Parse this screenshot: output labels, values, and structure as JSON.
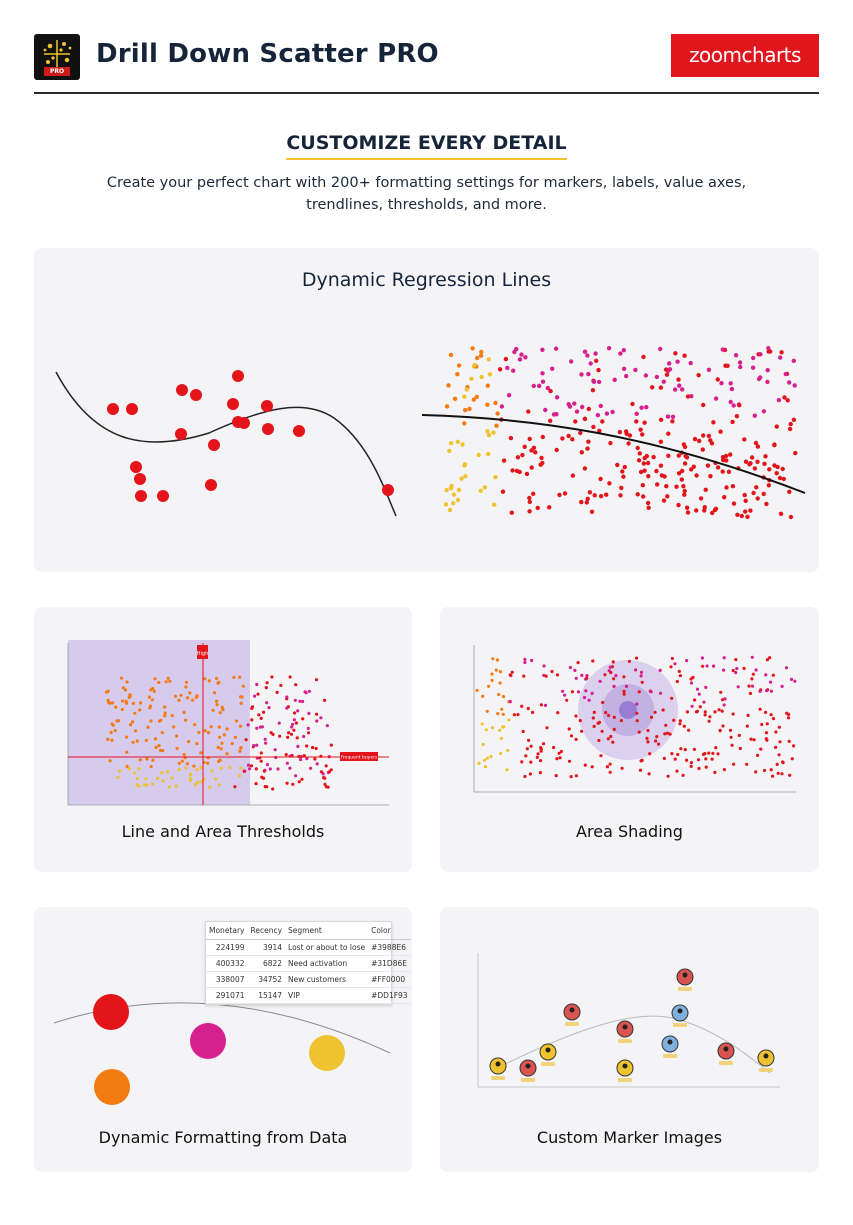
{
  "header": {
    "title": "Drill Down Scatter PRO",
    "icon_badge": "PRO",
    "brand": "zoomcharts",
    "accent": "#e1161c"
  },
  "hero": {
    "heading": "CUSTOMIZE EVERY DETAIL",
    "subtitle": "Create your perfect chart with 200+ formatting settings for markers, labels, value axes, trendlines, thresholds, and more."
  },
  "panels": {
    "regression": {
      "title": "Dynamic Regression Lines"
    },
    "thresholds": {
      "title": "Line and Area Thresholds",
      "line_label": "High",
      "area_label": "Frequent buyers"
    },
    "shading": {
      "title": "Area Shading"
    },
    "formatting": {
      "title": "Dynamic Formatting from Data"
    },
    "markers": {
      "title": "Custom Marker Images"
    }
  },
  "format_table": {
    "headers": [
      "Monetary",
      "Recency",
      "Segment",
      "Color"
    ],
    "rows": [
      [
        "224199",
        "3914",
        "Lost or about to lose",
        "#3988E6"
      ],
      [
        "400332",
        "6822",
        "Need activation",
        "#31D86E"
      ],
      [
        "338007",
        "34752",
        "New customers",
        "#FF0000"
      ],
      [
        "291071",
        "15147",
        "VIP",
        "#DD1F93"
      ]
    ]
  },
  "colors": {
    "red": "#e4141b",
    "orange": "#f47a12",
    "yellow": "#efc22f",
    "magenta": "#d6208e",
    "purple_area": "#c9b8e8"
  }
}
